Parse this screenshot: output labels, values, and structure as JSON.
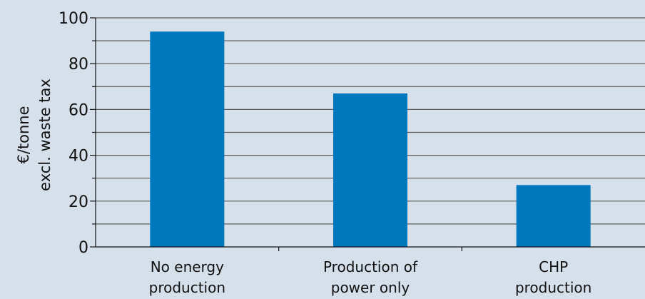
{
  "chart_data": {
    "type": "bar",
    "title": "",
    "ylabel_lines": [
      "€/tonne",
      "excl. waste tax"
    ],
    "categories": [
      [
        "No energy",
        "production"
      ],
      [
        "Production of",
        "power only"
      ],
      [
        "CHP",
        "production"
      ]
    ],
    "values": [
      94,
      67,
      27
    ],
    "ylim": [
      0,
      100
    ],
    "major_ticks": [
      0,
      20,
      40,
      60,
      80,
      100
    ],
    "gridline_step": 10,
    "grid": true,
    "colors": {
      "background": "#d6e0ea",
      "bar": "#0078be",
      "grid": "#5a5a5a",
      "axis": "#111111"
    }
  }
}
